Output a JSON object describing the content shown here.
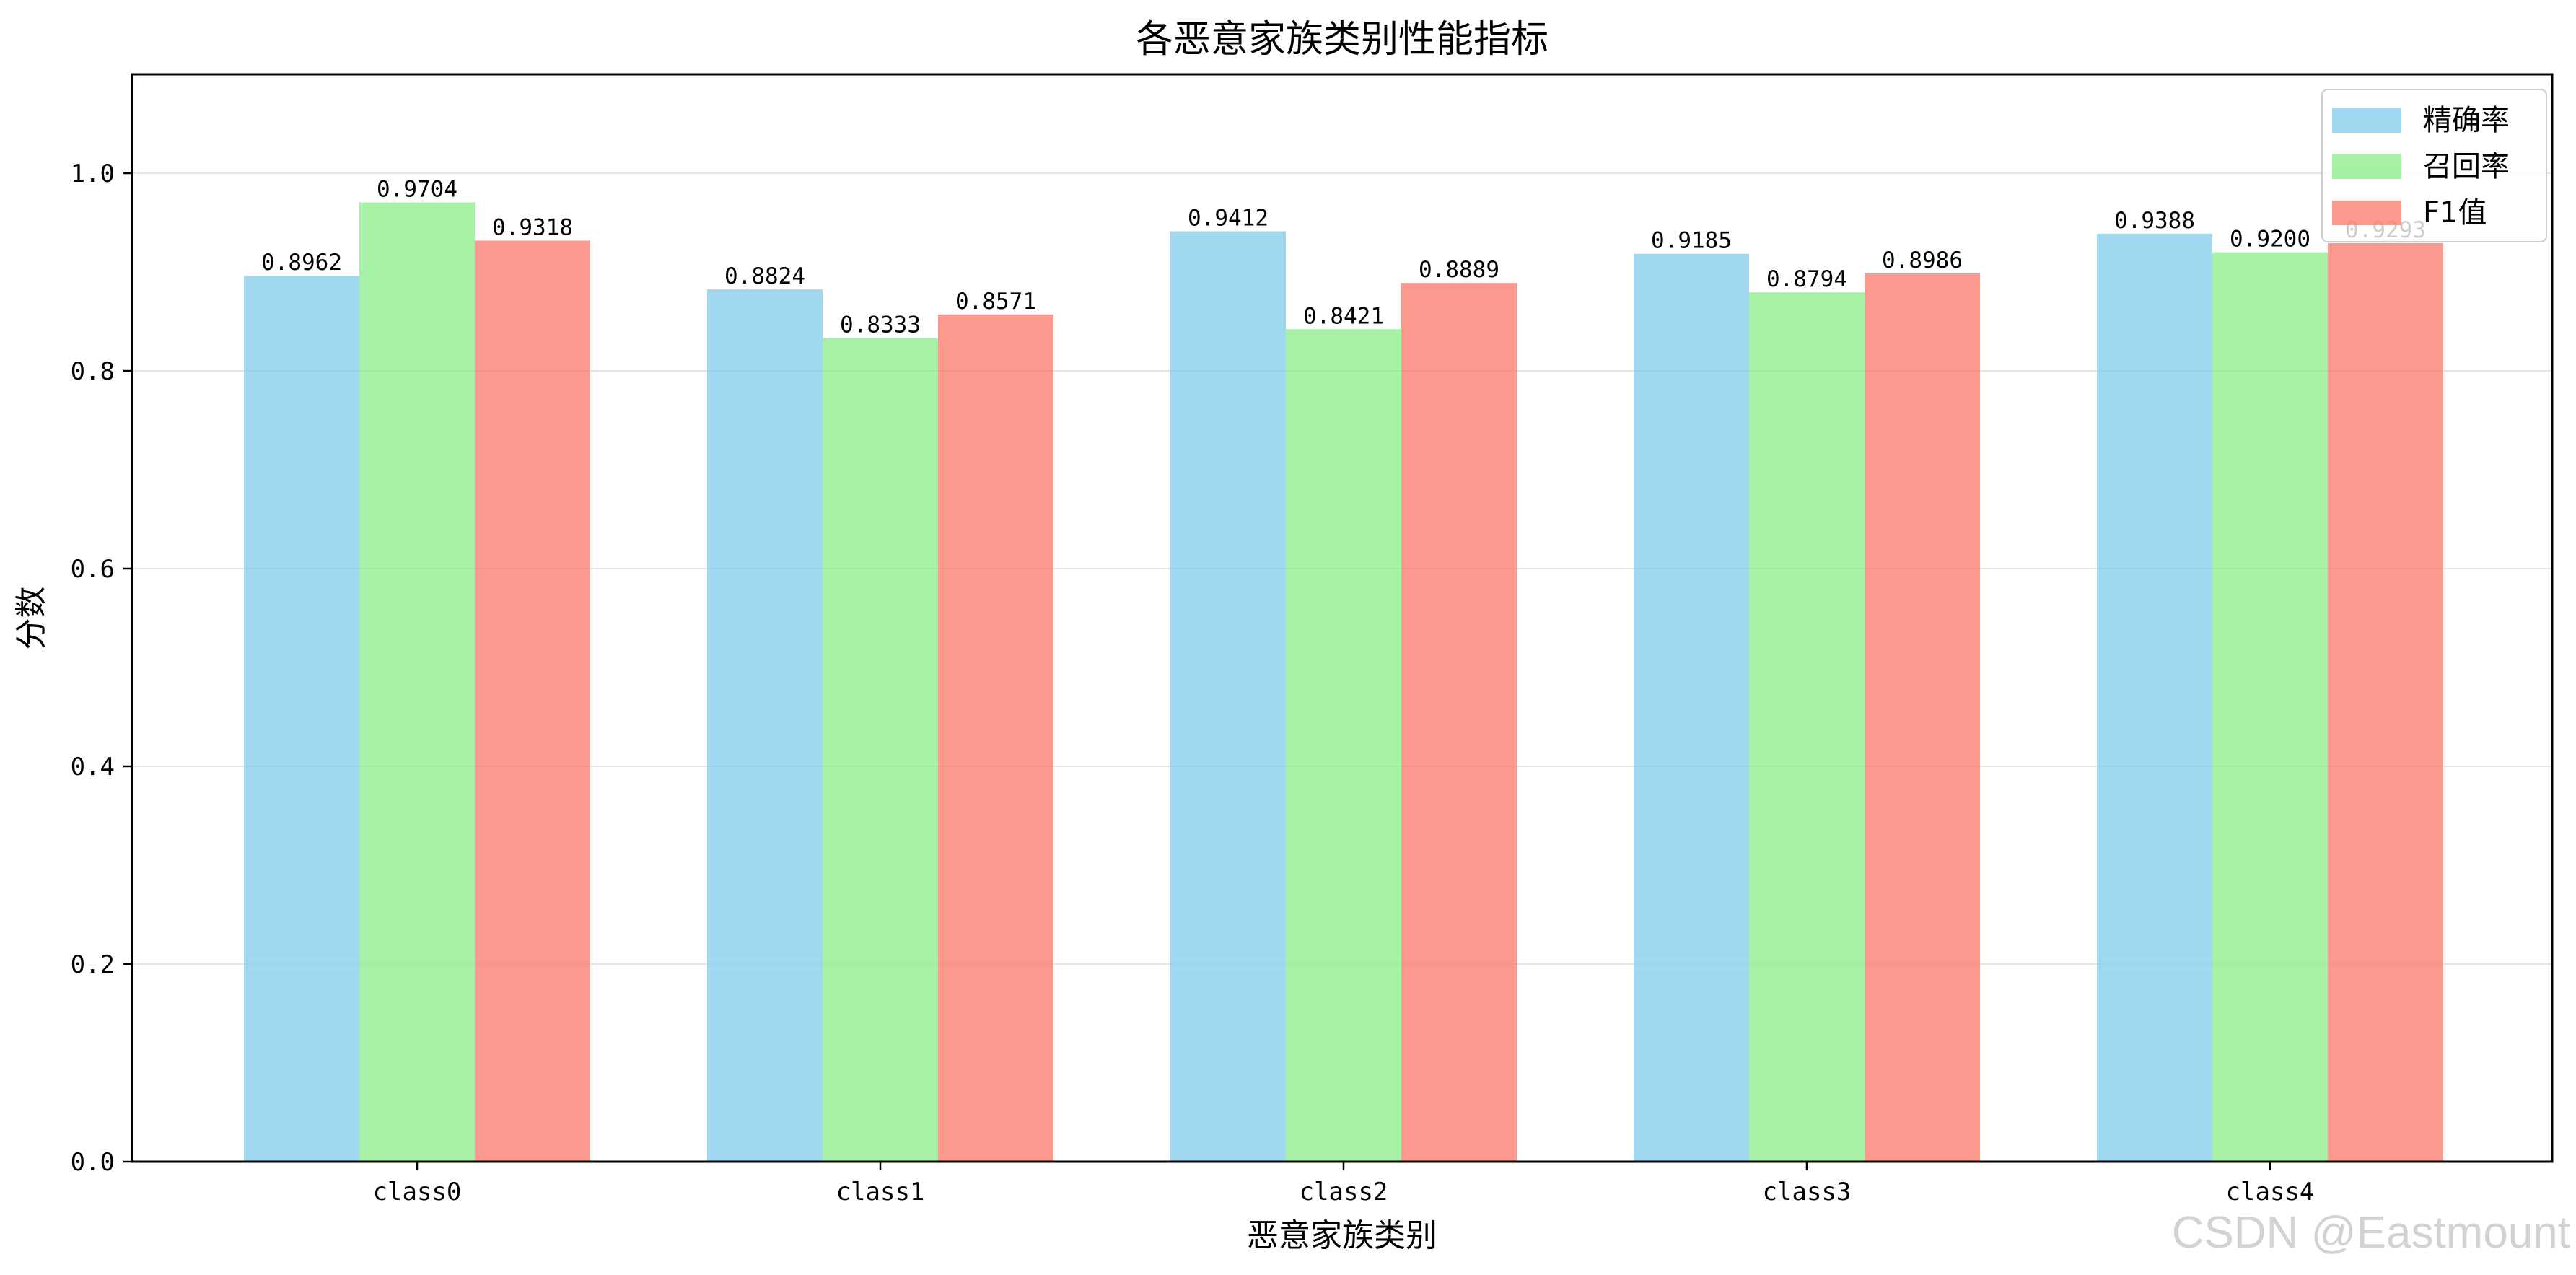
{
  "chart_data": {
    "type": "bar",
    "title": "各恶意家族类别性能指标",
    "xlabel": "恶意家族类别",
    "ylabel": "分数",
    "categories": [
      "class0",
      "class1",
      "class2",
      "class3",
      "class4"
    ],
    "series": [
      {
        "name": "精确率",
        "color": "#87ceeb",
        "values": [
          0.8962,
          0.8824,
          0.9412,
          0.9185,
          0.9388
        ],
        "labels": [
          "0.8962",
          "0.8824",
          "0.9412",
          "0.9185",
          "0.9388"
        ]
      },
      {
        "name": "召回率",
        "color": "#90ee90",
        "values": [
          0.9704,
          0.8333,
          0.8421,
          0.8794,
          0.92
        ],
        "labels": [
          "0.9704",
          "0.8333",
          "0.8421",
          "0.8794",
          "0.9200"
        ]
      },
      {
        "name": "F1值",
        "color": "#fa8072",
        "values": [
          0.9318,
          0.8571,
          0.8889,
          0.8986,
          0.9293
        ],
        "labels": [
          "0.9318",
          "0.8571",
          "0.8889",
          "0.8986",
          "0.9293"
        ]
      }
    ],
    "ylim": [
      0,
      1.1
    ],
    "yticks": [
      "0.0",
      "0.2",
      "0.4",
      "0.6",
      "0.8",
      "1.0"
    ],
    "grid": "horizontal",
    "legend": "top-right"
  },
  "watermark": "CSDN @Eastmount"
}
